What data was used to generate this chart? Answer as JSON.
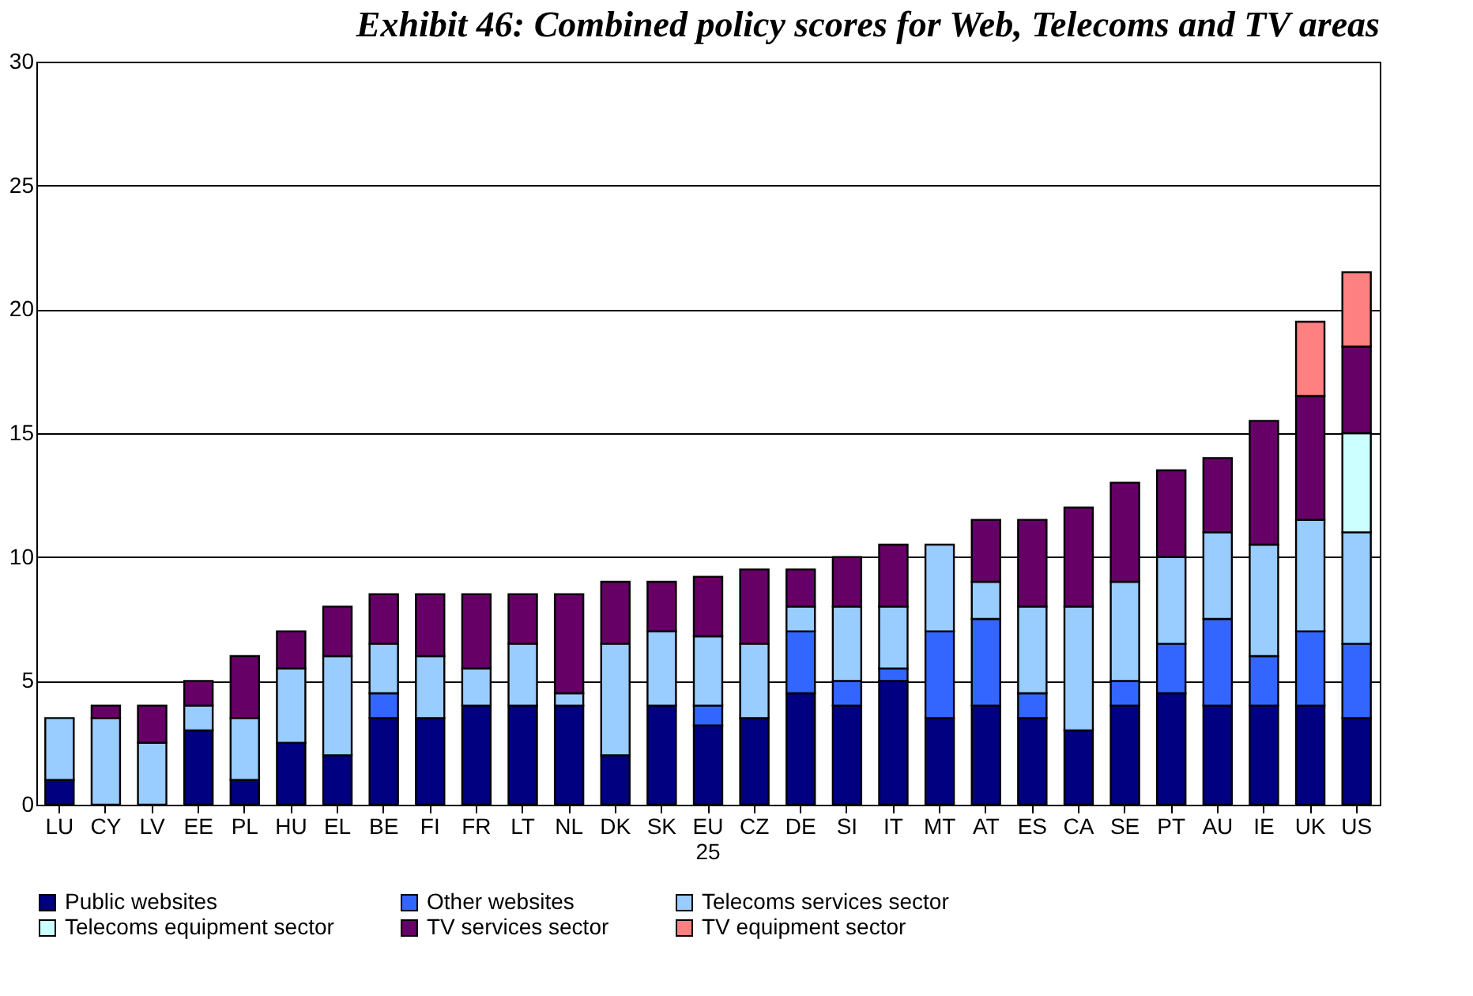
{
  "chart_data": {
    "type": "bar",
    "title": "Exhibit 46: Combined policy scores for Web, Telecoms and TV areas",
    "stacked": true,
    "categories": [
      "LU",
      "CY",
      "LV",
      "EE",
      "PL",
      "HU",
      "EL",
      "BE",
      "FI",
      "FR",
      "LT",
      "NL",
      "DK",
      "SK",
      "EU 25",
      "CZ",
      "DE",
      "SI",
      "IT",
      "MT",
      "AT",
      "ES",
      "CA",
      "SE",
      "PT",
      "AU",
      "IE",
      "UK",
      "US"
    ],
    "series": [
      {
        "name": "Public websites",
        "color": "#000080",
        "values": [
          1,
          null,
          null,
          3,
          1,
          2.5,
          2,
          3.5,
          3.5,
          4,
          4,
          4,
          2,
          4,
          3.2,
          3.5,
          4.5,
          4,
          5,
          3.5,
          4,
          3.5,
          3,
          4,
          4.5,
          4,
          4,
          4,
          3.5
        ]
      },
      {
        "name": "Other websites",
        "color": "#3366ff",
        "values": [
          null,
          null,
          null,
          null,
          null,
          null,
          null,
          1,
          null,
          null,
          null,
          null,
          null,
          null,
          0.8,
          null,
          2.5,
          1,
          0.5,
          3.5,
          3.5,
          1,
          null,
          1,
          2,
          3.5,
          2,
          3,
          3
        ]
      },
      {
        "name": "Telecoms services sector",
        "color": "#99ccff",
        "values": [
          2.5,
          3.5,
          2.5,
          1,
          2.5,
          3,
          4,
          2,
          2.5,
          1.5,
          2.5,
          0.5,
          4.5,
          3,
          2.8,
          3,
          1,
          3,
          2.5,
          3.5,
          1.5,
          3.5,
          5,
          4,
          3.5,
          3.5,
          4.5,
          4.5,
          4.5
        ]
      },
      {
        "name": "Telecoms equipment sector",
        "color": "#ccffff",
        "values": [
          null,
          null,
          null,
          null,
          null,
          null,
          null,
          null,
          null,
          null,
          null,
          null,
          null,
          null,
          null,
          null,
          null,
          null,
          null,
          null,
          null,
          null,
          null,
          null,
          null,
          null,
          null,
          null,
          4
        ]
      },
      {
        "name": "TV services sector",
        "color": "#660066",
        "values": [
          null,
          0.5,
          1.5,
          1,
          2.5,
          1.5,
          2,
          2,
          2.5,
          3,
          2,
          4,
          2.5,
          2,
          2.4,
          3,
          1.5,
          2,
          2.5,
          null,
          2.5,
          3.5,
          4,
          4,
          3.5,
          3,
          5,
          5,
          3.5
        ]
      },
      {
        "name": "TV equipment sector",
        "color": "#ff8080",
        "values": [
          null,
          null,
          null,
          null,
          null,
          null,
          null,
          null,
          null,
          null,
          null,
          null,
          null,
          null,
          null,
          null,
          null,
          null,
          null,
          null,
          null,
          null,
          null,
          null,
          null,
          null,
          null,
          3,
          3
        ]
      }
    ],
    "ylim": [
      0,
      30
    ],
    "yticks": [
      0,
      5,
      10,
      15,
      20,
      25,
      30
    ],
    "grid": "y",
    "legend": "bottom"
  }
}
